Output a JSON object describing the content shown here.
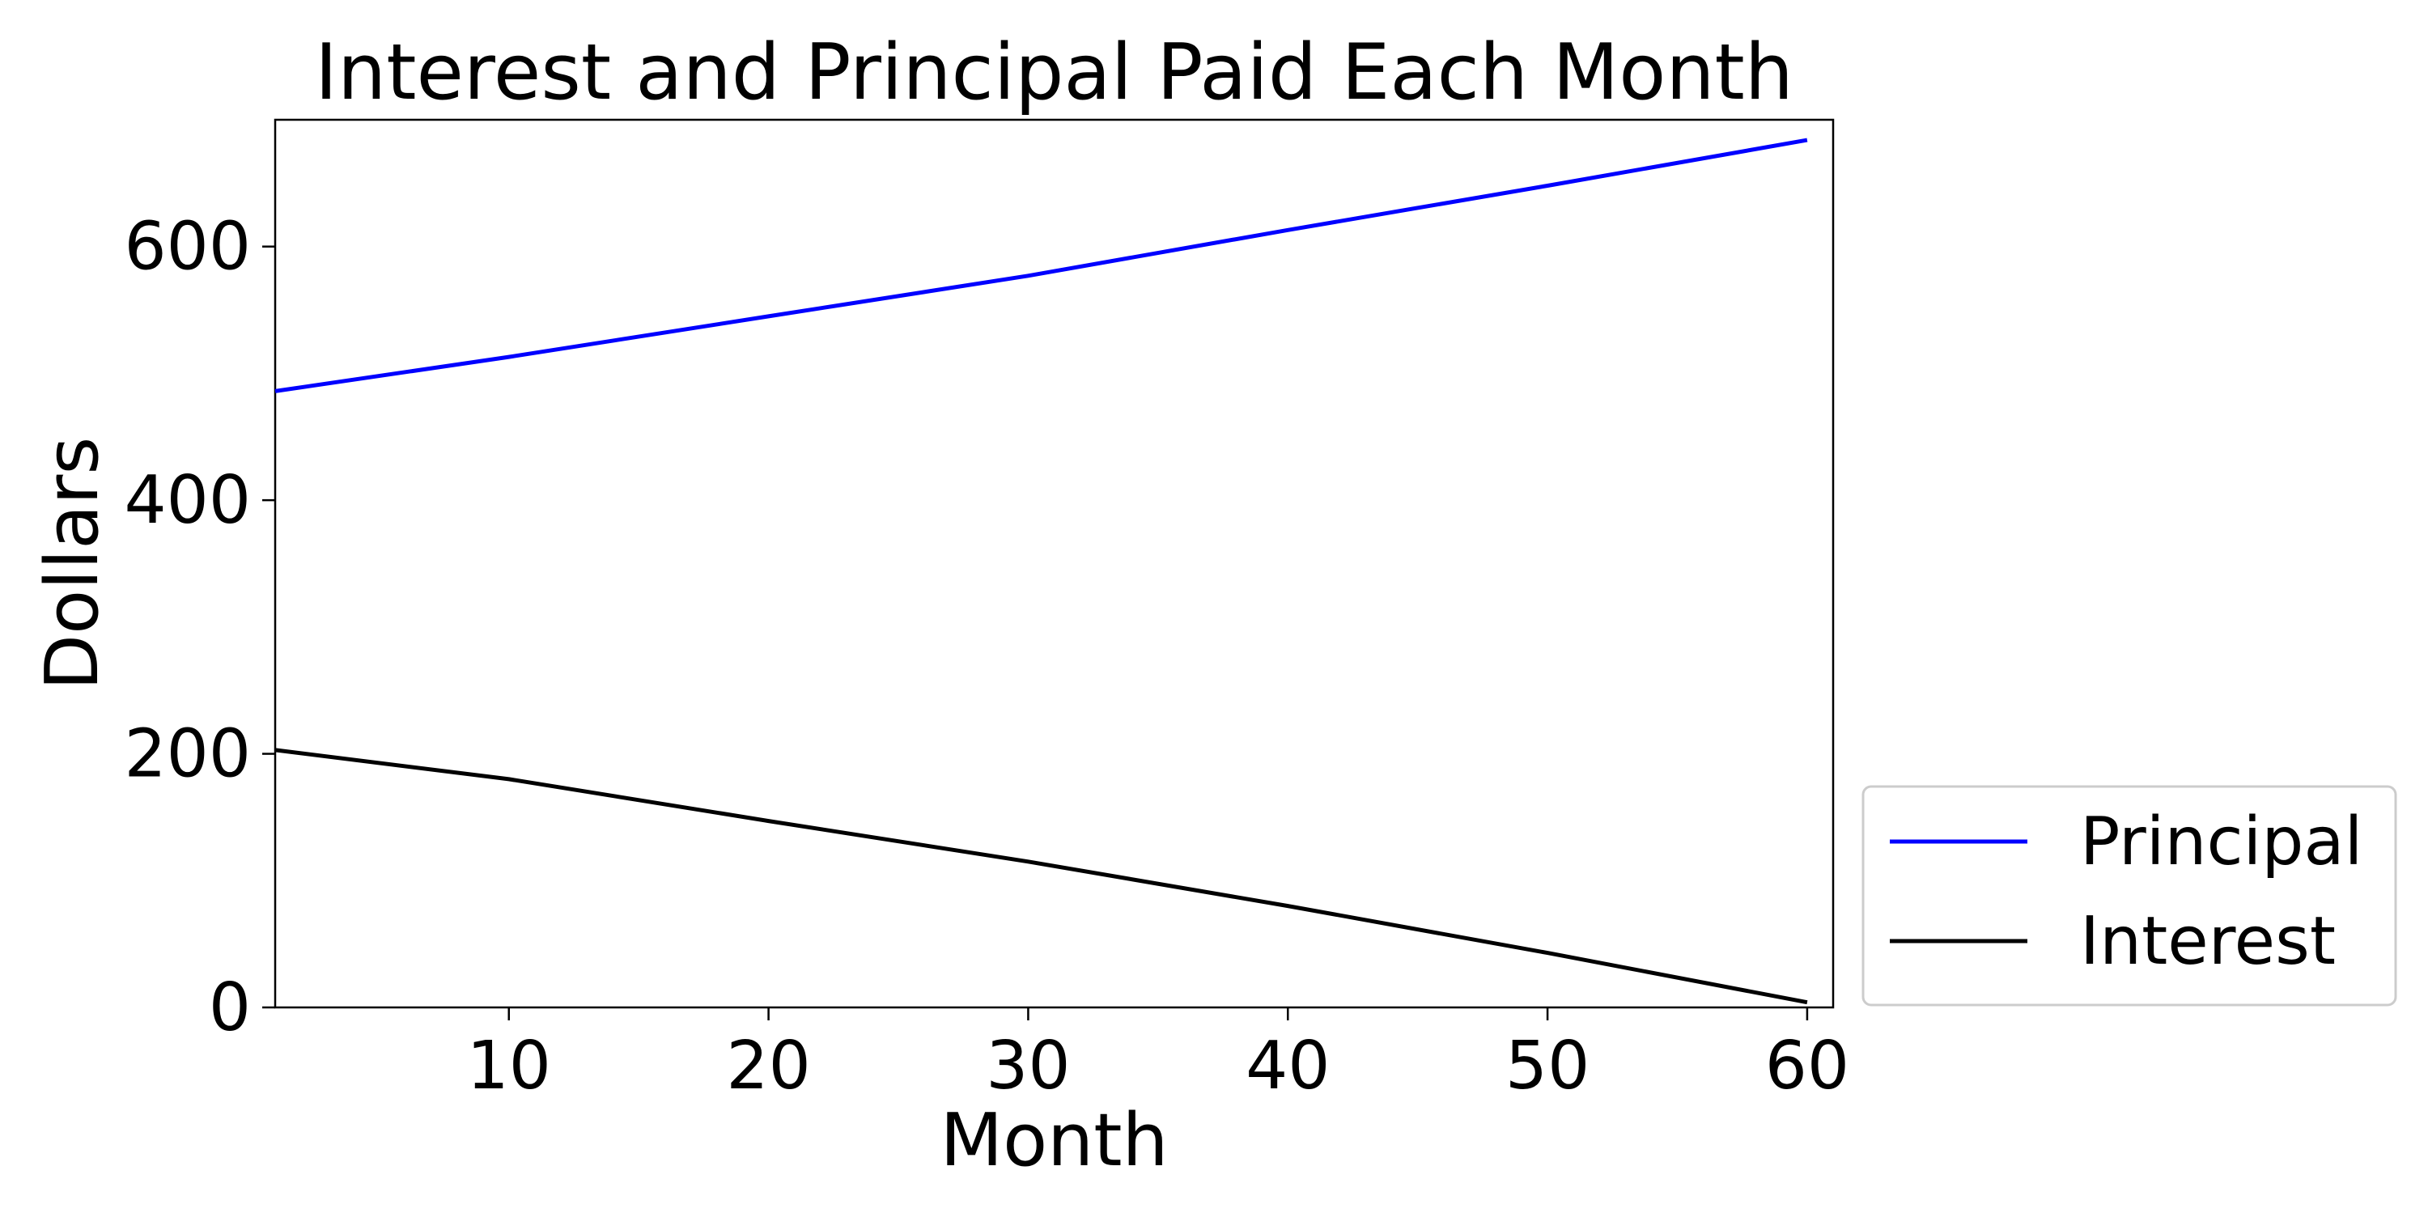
{
  "chart_data": {
    "type": "line",
    "title": "Interest and Principal Paid Each Month",
    "xlabel": "Month",
    "ylabel": "Dollars",
    "xlim": [
      1,
      61
    ],
    "ylim": [
      0,
      700
    ],
    "xticks": [
      10,
      20,
      30,
      40,
      50,
      60
    ],
    "yticks": [
      0,
      200,
      400,
      600
    ],
    "grid": false,
    "legend_position": "outside-bottom-right",
    "series": [
      {
        "name": "Principal",
        "color": "#0000ff",
        "x": [
          1,
          10,
          20,
          30,
          40,
          50,
          60
        ],
        "y": [
          486,
          513,
          545,
          577,
          613,
          648,
          684
        ]
      },
      {
        "name": "Interest",
        "color": "#000000",
        "x": [
          1,
          10,
          20,
          30,
          40,
          50,
          60
        ],
        "y": [
          203,
          180,
          147,
          115,
          80,
          43,
          4
        ]
      }
    ]
  }
}
